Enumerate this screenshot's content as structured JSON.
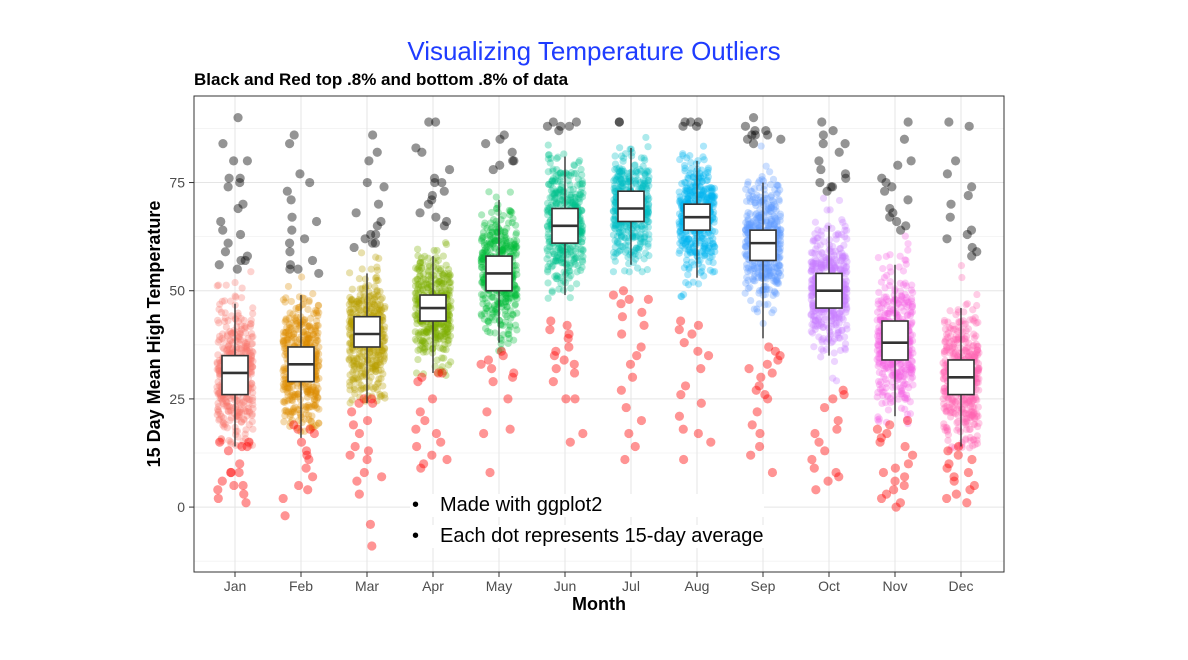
{
  "chart_data": {
    "type": "scatter",
    "subtype": "jitter-with-boxplot",
    "title": "Visualizing Temperature Outliers",
    "subtitle": "Black and Red top .8% and bottom .8% of data",
    "xlabel": "Month",
    "ylabel": "15 Day Mean High Temperature",
    "categories": [
      "Jan",
      "Feb",
      "Mar",
      "Apr",
      "May",
      "Jun",
      "Jul",
      "Aug",
      "Sep",
      "Oct",
      "Nov",
      "Dec"
    ],
    "ylim": [
      -15,
      95
    ],
    "yticks": [
      0,
      25,
      50,
      75
    ],
    "grid": true,
    "legend": "none",
    "colors": [
      "#F8766D",
      "#DE8C00",
      "#B79F00",
      "#7CAE00",
      "#00BA38",
      "#00C08B",
      "#00BFC4",
      "#00B4F0",
      "#619CFF",
      "#C77CFF",
      "#F564E3",
      "#FF64B0"
    ],
    "outlier_high_color": "#000000",
    "outlier_low_color": "#FF0000",
    "boxplots": [
      {
        "month": "Jan",
        "whisker_low": 14,
        "q1": 26,
        "median": 31,
        "q3": 35,
        "whisker_high": 47
      },
      {
        "month": "Feb",
        "whisker_low": 16,
        "q1": 29,
        "median": 33,
        "q3": 37,
        "whisker_high": 49
      },
      {
        "month": "Mar",
        "whisker_low": 24,
        "q1": 37,
        "median": 40,
        "q3": 44,
        "whisker_high": 54
      },
      {
        "month": "Apr",
        "whisker_low": 31,
        "q1": 43,
        "median": 46,
        "q3": 49,
        "whisker_high": 58
      },
      {
        "month": "May",
        "whisker_low": 38,
        "q1": 50,
        "median": 54,
        "q3": 58,
        "whisker_high": 71
      },
      {
        "month": "Jun",
        "whisker_low": 49,
        "q1": 61,
        "median": 65,
        "q3": 69,
        "whisker_high": 81
      },
      {
        "month": "Jul",
        "whisker_low": 56,
        "q1": 66,
        "median": 69,
        "q3": 73,
        "whisker_high": 83
      },
      {
        "month": "Aug",
        "whisker_low": 53,
        "q1": 64,
        "median": 67,
        "q3": 70,
        "whisker_high": 80
      },
      {
        "month": "Sep",
        "whisker_low": 39,
        "q1": 57,
        "median": 61,
        "q3": 64,
        "whisker_high": 75
      },
      {
        "month": "Oct",
        "whisker_low": 35,
        "q1": 46,
        "median": 50,
        "q3": 54,
        "whisker_high": 65
      },
      {
        "month": "Nov",
        "whisker_low": 21,
        "q1": 34,
        "median": 38,
        "q3": 43,
        "whisker_high": 56
      },
      {
        "month": "Dec",
        "whisker_low": 14,
        "q1": 26,
        "median": 30,
        "q3": 34,
        "whisker_high": 46
      }
    ],
    "point_cloud": [
      {
        "month": "Jan",
        "low": 14,
        "high": 55,
        "center": 31,
        "spread": 8
      },
      {
        "month": "Feb",
        "low": 17,
        "high": 54,
        "center": 33,
        "spread": 8
      },
      {
        "month": "Mar",
        "low": 24,
        "high": 60,
        "center": 40,
        "spread": 7
      },
      {
        "month": "Apr",
        "low": 30,
        "high": 65,
        "center": 46,
        "spread": 6
      },
      {
        "month": "May",
        "low": 36,
        "high": 78,
        "center": 54,
        "spread": 7
      },
      {
        "month": "Jun",
        "low": 42,
        "high": 87,
        "center": 65,
        "spread": 7
      },
      {
        "month": "Jul",
        "low": 50,
        "high": 89,
        "center": 69,
        "spread": 6
      },
      {
        "month": "Aug",
        "low": 45,
        "high": 88,
        "center": 67,
        "spread": 6
      },
      {
        "month": "Sep",
        "low": 36,
        "high": 84,
        "center": 61,
        "spread": 7
      },
      {
        "month": "Oct",
        "low": 27,
        "high": 73,
        "center": 50,
        "spread": 7
      },
      {
        "month": "Nov",
        "low": 19,
        "high": 64,
        "center": 38,
        "spread": 8
      },
      {
        "month": "Dec",
        "low": 13,
        "high": 58,
        "center": 30,
        "spread": 8
      }
    ],
    "outliers_high": [
      {
        "month": "Jan",
        "values": [
          90,
          84,
          80,
          80,
          76,
          76,
          75,
          74,
          70,
          69,
          66,
          64,
          63,
          61,
          59,
          58,
          57,
          57,
          56,
          55
        ]
      },
      {
        "month": "Feb",
        "values": [
          86,
          84,
          77,
          75,
          73,
          71,
          67,
          66,
          64,
          62,
          61,
          59,
          57,
          56,
          55,
          55,
          54
        ]
      },
      {
        "month": "Mar",
        "values": [
          86,
          82,
          80,
          75,
          74,
          70,
          68,
          66,
          65,
          63,
          63,
          62,
          61,
          61,
          60
        ]
      },
      {
        "month": "Apr",
        "values": [
          89,
          89,
          83,
          82,
          78,
          76,
          75,
          75,
          73,
          72,
          71,
          70,
          68,
          67,
          66,
          65
        ]
      },
      {
        "month": "May",
        "values": [
          86,
          85,
          84,
          82,
          80,
          80,
          79,
          78
        ]
      },
      {
        "month": "Jun",
        "values": [
          89,
          89,
          88,
          88,
          88,
          87
        ]
      },
      {
        "month": "Jul",
        "values": [
          89,
          89
        ]
      },
      {
        "month": "Aug",
        "values": [
          89,
          89,
          89,
          88,
          88
        ]
      },
      {
        "month": "Sep",
        "values": [
          90,
          88,
          87,
          87,
          86,
          86,
          86,
          85,
          85,
          84
        ]
      },
      {
        "month": "Oct",
        "values": [
          89,
          87,
          86,
          84,
          84,
          82,
          80,
          78,
          77,
          76,
          75,
          74,
          74,
          73
        ]
      },
      {
        "month": "Nov",
        "values": [
          89,
          85,
          80,
          79,
          76,
          75,
          74,
          73,
          71,
          69,
          68,
          67,
          66,
          65,
          64
        ]
      },
      {
        "month": "Dec",
        "values": [
          89,
          88,
          80,
          77,
          74,
          72,
          70,
          67,
          64,
          63,
          62,
          60,
          59,
          58
        ]
      }
    ],
    "outliers_low": [
      {
        "month": "Jan",
        "values": [
          15,
          15,
          14,
          14,
          13,
          10,
          8,
          8,
          8,
          6,
          5,
          5,
          4,
          3,
          2,
          1
        ]
      },
      {
        "month": "Feb",
        "values": [
          19,
          18,
          18,
          17,
          15,
          13,
          12,
          11,
          9,
          7,
          5,
          4,
          2,
          -2
        ]
      },
      {
        "month": "Mar",
        "values": [
          25,
          25,
          24,
          24,
          22,
          20,
          19,
          17,
          14,
          13,
          12,
          11,
          8,
          7,
          6,
          3,
          -4,
          -9
        ]
      },
      {
        "month": "Apr",
        "values": [
          31,
          31,
          30,
          29,
          25,
          22,
          20,
          18,
          17,
          15,
          14,
          12,
          11,
          10,
          9
        ]
      },
      {
        "month": "May",
        "values": [
          36,
          35,
          34,
          33,
          32,
          31,
          30,
          29,
          25,
          22,
          18,
          17,
          8
        ]
      },
      {
        "month": "Jun",
        "values": [
          43,
          42,
          41,
          40,
          39,
          37,
          36,
          35,
          34,
          33,
          32,
          31,
          29,
          25,
          25,
          17,
          15
        ]
      },
      {
        "month": "Jul",
        "values": [
          50,
          49,
          48,
          48,
          47,
          45,
          44,
          42,
          40,
          37,
          35,
          33,
          30,
          27,
          23,
          20,
          17,
          14,
          11
        ]
      },
      {
        "month": "Aug",
        "values": [
          43,
          42,
          41,
          40,
          38,
          36,
          35,
          32,
          28,
          26,
          24,
          21,
          18,
          17,
          15,
          11
        ]
      },
      {
        "month": "Sep",
        "values": [
          37,
          36,
          35,
          34,
          33,
          32,
          31,
          30,
          28,
          27,
          26,
          25,
          22,
          19,
          17,
          14,
          12,
          8
        ]
      },
      {
        "month": "Oct",
        "values": [
          27,
          26,
          25,
          23,
          20,
          18,
          17,
          15,
          13,
          11,
          9,
          8,
          7,
          6,
          4
        ]
      },
      {
        "month": "Nov",
        "values": [
          20,
          19,
          18,
          17,
          16,
          15,
          14,
          12,
          10,
          9,
          8,
          7,
          6,
          5,
          4,
          3,
          2,
          1,
          0
        ]
      },
      {
        "month": "Dec",
        "values": [
          14,
          13,
          12,
          11,
          10,
          9,
          8,
          7,
          6,
          5,
          4,
          3,
          2,
          1
        ]
      }
    ]
  },
  "notes": [
    "Made with ggplot2",
    "Each dot represents 15-day average"
  ]
}
